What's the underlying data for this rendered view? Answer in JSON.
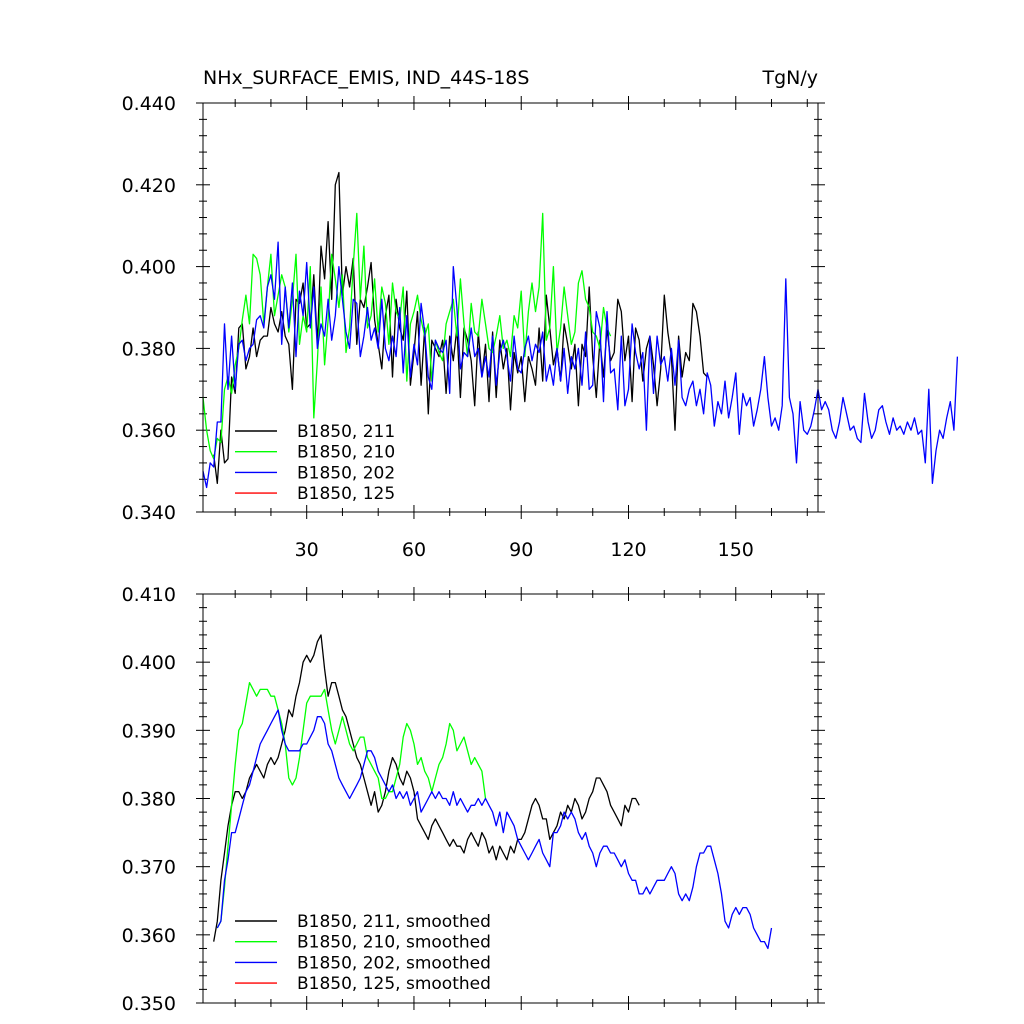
{
  "chart_data": [
    {
      "type": "line",
      "title": "NHx_SURFACE_EMIS, IND_44S-18S",
      "units": "TgN/y",
      "xlabel": "",
      "ylabel": "",
      "xlim": [
        1,
        173
      ],
      "ylim": [
        0.34,
        0.44
      ],
      "x_ticks": [
        30,
        60,
        90,
        120,
        150
      ],
      "x_tick_labels": [
        "30",
        "60",
        "90",
        "120",
        "150"
      ],
      "y_ticks": [
        0.34,
        0.36,
        0.38,
        0.4,
        0.42,
        0.44
      ],
      "y_tick_labels": [
        "0.340",
        "0.360",
        "0.380",
        "0.400",
        "0.420",
        "0.440"
      ],
      "legend_position": "bottom-left",
      "series": [
        {
          "name": "B1850, 211",
          "color": "#000000",
          "x_start": 4,
          "values": [
            0.354,
            0.347,
            0.36,
            0.352,
            0.353,
            0.373,
            0.369,
            0.385,
            0.386,
            0.375,
            0.378,
            0.385,
            0.378,
            0.382,
            0.383,
            0.383,
            0.39,
            0.386,
            0.384,
            0.389,
            0.383,
            0.381,
            0.37,
            0.392,
            0.391,
            0.396,
            0.385,
            0.386,
            0.398,
            0.381,
            0.405,
            0.397,
            0.411,
            0.392,
            0.42,
            0.423,
            0.393,
            0.4,
            0.395,
            0.402,
            0.381,
            0.392,
            0.39,
            0.395,
            0.401,
            0.387,
            0.381,
            0.375,
            0.388,
            0.393,
            0.373,
            0.392,
            0.385,
            0.382,
            0.394,
            0.371,
            0.379,
            0.389,
            0.371,
            0.385,
            0.364,
            0.382,
            0.38,
            0.378,
            0.382,
            0.369,
            0.383,
            0.377,
            0.385,
            0.368,
            0.385,
            0.382,
            0.377,
            0.366,
            0.384,
            0.373,
            0.381,
            0.367,
            0.384,
            0.368,
            0.382,
            0.375,
            0.38,
            0.365,
            0.379,
            0.374,
            0.378,
            0.367,
            0.378,
            0.375,
            0.371,
            0.385,
            0.372,
            0.393,
            0.385,
            0.376,
            0.38,
            0.372,
            0.386,
            0.381,
            0.375,
            0.381,
            0.366,
            0.381,
            0.378,
            0.395,
            0.378,
            0.368,
            0.382,
            0.373,
            0.385,
            0.377,
            0.379,
            0.392,
            0.389,
            0.377,
            0.383,
            0.367,
            0.385,
            0.382,
            0.372,
            0.38,
            0.383,
            0.376,
            0.366,
            0.375,
            0.393,
            0.384,
            0.378,
            0.36,
            0.383,
            0.373,
            0.379,
            0.377,
            0.391,
            0.389,
            0.383,
            0.374,
            0.373
          ]
        },
        {
          "name": "B1850, 210",
          "color": "#00FF00",
          "x_start": 1,
          "values": [
            0.368,
            0.36,
            0.355,
            0.353,
            0.358,
            0.357,
            0.37,
            0.373,
            0.369,
            0.376,
            0.38,
            0.387,
            0.393,
            0.386,
            0.403,
            0.402,
            0.398,
            0.386,
            0.395,
            0.403,
            0.388,
            0.393,
            0.398,
            0.395,
            0.384,
            0.392,
            0.403,
            0.381,
            0.388,
            0.384,
            0.4,
            0.363,
            0.377,
            0.395,
            0.376,
            0.387,
            0.403,
            0.397,
            0.39,
            0.398,
            0.379,
            0.385,
            0.4,
            0.413,
            0.392,
            0.405,
            0.385,
            0.388,
            0.397,
            0.384,
            0.395,
            0.391,
            0.381,
            0.396,
            0.389,
            0.387,
            0.395,
            0.372,
            0.386,
            0.389,
            0.393,
            0.387,
            0.383,
            0.386,
            0.372,
            0.382,
            0.379,
            0.377,
            0.386,
            0.389,
            0.392,
            0.383,
            0.397,
            0.386,
            0.378,
            0.391,
            0.384,
            0.383,
            0.392,
            0.386,
            0.38,
            0.379,
            0.383,
            0.388,
            0.38,
            0.382,
            0.378,
            0.388,
            0.385,
            0.394,
            0.378,
            0.389,
            0.396,
            0.389,
            0.395,
            0.413,
            0.382,
            0.385,
            0.4,
            0.379,
            0.385,
            0.395,
            0.388,
            0.381,
            0.384,
            0.396,
            0.399,
            0.392,
            0.39,
            0.384,
            0.383,
            0.38,
            0.39,
            0.385,
            0.383
          ]
        },
        {
          "name": "B1850, 202",
          "color": "#0000FF",
          "x_start": 1,
          "values": [
            0.35,
            0.346,
            0.352,
            0.351,
            0.362,
            0.362,
            0.386,
            0.37,
            0.383,
            0.37,
            0.381,
            0.382,
            0.377,
            0.38,
            0.381,
            0.387,
            0.388,
            0.385,
            0.395,
            0.398,
            0.392,
            0.406,
            0.381,
            0.395,
            0.385,
            0.396,
            0.378,
            0.394,
            0.388,
            0.401,
            0.385,
            0.395,
            0.38,
            0.386,
            0.383,
            0.392,
            0.382,
            0.388,
            0.4,
            0.392,
            0.384,
            0.38,
            0.392,
            0.391,
            0.378,
            0.383,
            0.39,
            0.382,
            0.385,
            0.38,
            0.392,
            0.38,
            0.377,
            0.383,
            0.378,
            0.39,
            0.374,
            0.388,
            0.373,
            0.381,
            0.376,
            0.391,
            0.384,
            0.373,
            0.37,
            0.382,
            0.38,
            0.379,
            0.382,
            0.369,
            0.4,
            0.39,
            0.375,
            0.379,
            0.378,
            0.385,
            0.378,
            0.38,
            0.373,
            0.378,
            0.373,
            0.383,
            0.371,
            0.379,
            0.382,
            0.378,
            0.372,
            0.383,
            0.375,
            0.374,
            0.38,
            0.383,
            0.377,
            0.381,
            0.379,
            0.384,
            0.372,
            0.376,
            0.371,
            0.38,
            0.372,
            0.38,
            0.369,
            0.378,
            0.375,
            0.38,
            0.371,
            0.384,
            0.37,
            0.371,
            0.389,
            0.385,
            0.367,
            0.389,
            0.374,
            0.375,
            0.365,
            0.383,
            0.366,
            0.37,
            0.386,
            0.379,
            0.375,
            0.379,
            0.36,
            0.383,
            0.369,
            0.383,
            0.376,
            0.378,
            0.372,
            0.38,
            0.371,
            0.382,
            0.368,
            0.366,
            0.37,
            0.372,
            0.366,
            0.37,
            0.364,
            0.374,
            0.371,
            0.361,
            0.367,
            0.364,
            0.372,
            0.363,
            0.368,
            0.374,
            0.359,
            0.369,
            0.366,
            0.368,
            0.361,
            0.365,
            0.37,
            0.378,
            0.368,
            0.361,
            0.363,
            0.36,
            0.366,
            0.397,
            0.368,
            0.364,
            0.352,
            0.367,
            0.36,
            0.359,
            0.361,
            0.365,
            0.37,
            0.365,
            0.367,
            0.365,
            0.36,
            0.358,
            0.362,
            0.368,
            0.364,
            0.36,
            0.361,
            0.358,
            0.357,
            0.369,
            0.362,
            0.358,
            0.36,
            0.365,
            0.366,
            0.362,
            0.359,
            0.363,
            0.36,
            0.361,
            0.359,
            0.362,
            0.36,
            0.363,
            0.359,
            0.36,
            0.352,
            0.37,
            0.347,
            0.355,
            0.36,
            0.358,
            0.363,
            0.367,
            0.36,
            0.378
          ]
        },
        {
          "name": "B1850, 125",
          "color": "#FF0000",
          "x_start": 1,
          "values": []
        }
      ]
    },
    {
      "type": "line",
      "title": "",
      "xlabel": "",
      "ylabel": "",
      "xlim": [
        1,
        173
      ],
      "ylim": [
        0.35,
        0.41
      ],
      "x_ticks": [
        30,
        60,
        90,
        120,
        150
      ],
      "y_ticks": [
        0.35,
        0.36,
        0.37,
        0.38,
        0.39,
        0.4,
        0.41
      ],
      "y_tick_labels": [
        "0.350",
        "0.360",
        "0.370",
        "0.380",
        "0.390",
        "0.400",
        "0.410"
      ],
      "legend_position": "bottom-left",
      "series": [
        {
          "name": "B1850, 211, smoothed",
          "color": "#000000",
          "x_start": 4,
          "values": [
            0.359,
            0.362,
            0.368,
            0.372,
            0.376,
            0.379,
            0.381,
            0.381,
            0.38,
            0.381,
            0.383,
            0.384,
            0.385,
            0.384,
            0.383,
            0.385,
            0.386,
            0.385,
            0.386,
            0.388,
            0.39,
            0.393,
            0.392,
            0.395,
            0.397,
            0.4,
            0.401,
            0.4,
            0.401,
            0.403,
            0.404,
            0.399,
            0.395,
            0.397,
            0.397,
            0.395,
            0.393,
            0.392,
            0.39,
            0.388,
            0.386,
            0.385,
            0.383,
            0.381,
            0.379,
            0.381,
            0.378,
            0.379,
            0.381,
            0.384,
            0.386,
            0.385,
            0.383,
            0.382,
            0.384,
            0.383,
            0.381,
            0.377,
            0.376,
            0.375,
            0.374,
            0.376,
            0.377,
            0.376,
            0.375,
            0.374,
            0.373,
            0.374,
            0.373,
            0.373,
            0.372,
            0.374,
            0.375,
            0.374,
            0.373,
            0.375,
            0.374,
            0.372,
            0.373,
            0.371,
            0.373,
            0.372,
            0.371,
            0.373,
            0.372,
            0.374,
            0.374,
            0.375,
            0.377,
            0.379,
            0.38,
            0.379,
            0.377,
            0.377,
            0.374,
            0.375,
            0.376,
            0.378,
            0.377,
            0.379,
            0.378,
            0.38,
            0.379,
            0.377,
            0.378,
            0.38,
            0.381,
            0.383,
            0.383,
            0.382,
            0.381,
            0.379,
            0.378,
            0.377,
            0.376,
            0.379,
            0.378,
            0.38,
            0.38,
            0.379
          ]
        },
        {
          "name": "B1850, 210, smoothed",
          "color": "#00FF00",
          "x_start": 5,
          "values": [
            0.361,
            0.362,
            0.367,
            0.373,
            0.379,
            0.385,
            0.39,
            0.391,
            0.394,
            0.397,
            0.396,
            0.395,
            0.396,
            0.396,
            0.396,
            0.395,
            0.395,
            0.393,
            0.391,
            0.388,
            0.383,
            0.382,
            0.383,
            0.386,
            0.39,
            0.394,
            0.395,
            0.395,
            0.395,
            0.395,
            0.396,
            0.393,
            0.39,
            0.388,
            0.39,
            0.392,
            0.39,
            0.388,
            0.387,
            0.388,
            0.389,
            0.389,
            0.386,
            0.385,
            0.384,
            0.383,
            0.38,
            0.38,
            0.381,
            0.381,
            0.383,
            0.385,
            0.389,
            0.391,
            0.39,
            0.388,
            0.385,
            0.386,
            0.384,
            0.383,
            0.381,
            0.383,
            0.385,
            0.386,
            0.388,
            0.391,
            0.39,
            0.387,
            0.388,
            0.389,
            0.387,
            0.385,
            0.386,
            0.385,
            0.384,
            0.38
          ]
        },
        {
          "name": "B1850, 202, smoothed",
          "color": "#0000FF",
          "x_start": 5,
          "values": [
            0.361,
            0.362,
            0.368,
            0.371,
            0.375,
            0.375,
            0.377,
            0.379,
            0.381,
            0.382,
            0.384,
            0.386,
            0.388,
            0.389,
            0.39,
            0.391,
            0.392,
            0.393,
            0.39,
            0.388,
            0.387,
            0.387,
            0.387,
            0.387,
            0.388,
            0.388,
            0.389,
            0.39,
            0.392,
            0.392,
            0.391,
            0.388,
            0.387,
            0.385,
            0.383,
            0.382,
            0.381,
            0.38,
            0.381,
            0.382,
            0.383,
            0.385,
            0.387,
            0.387,
            0.386,
            0.384,
            0.383,
            0.382,
            0.381,
            0.382,
            0.38,
            0.381,
            0.38,
            0.381,
            0.379,
            0.38,
            0.381,
            0.378,
            0.379,
            0.38,
            0.381,
            0.38,
            0.381,
            0.38,
            0.38,
            0.379,
            0.381,
            0.379,
            0.38,
            0.379,
            0.378,
            0.379,
            0.379,
            0.38,
            0.379,
            0.38,
            0.379,
            0.378,
            0.376,
            0.378,
            0.375,
            0.378,
            0.377,
            0.376,
            0.374,
            0.373,
            0.372,
            0.371,
            0.372,
            0.373,
            0.374,
            0.372,
            0.371,
            0.37,
            0.375,
            0.375,
            0.376,
            0.378,
            0.377,
            0.378,
            0.377,
            0.375,
            0.374,
            0.375,
            0.373,
            0.372,
            0.37,
            0.372,
            0.373,
            0.373,
            0.372,
            0.372,
            0.371,
            0.37,
            0.371,
            0.369,
            0.368,
            0.368,
            0.366,
            0.366,
            0.367,
            0.366,
            0.367,
            0.368,
            0.368,
            0.368,
            0.369,
            0.37,
            0.369,
            0.366,
            0.365,
            0.366,
            0.365,
            0.367,
            0.37,
            0.372,
            0.372,
            0.373,
            0.373,
            0.371,
            0.369,
            0.366,
            0.362,
            0.361,
            0.363,
            0.364,
            0.363,
            0.364,
            0.364,
            0.363,
            0.361,
            0.36,
            0.359,
            0.359,
            0.358,
            0.361
          ]
        },
        {
          "name": "B1850, 125, smoothed",
          "color": "#FF0000",
          "x_start": 1,
          "values": []
        }
      ]
    }
  ]
}
